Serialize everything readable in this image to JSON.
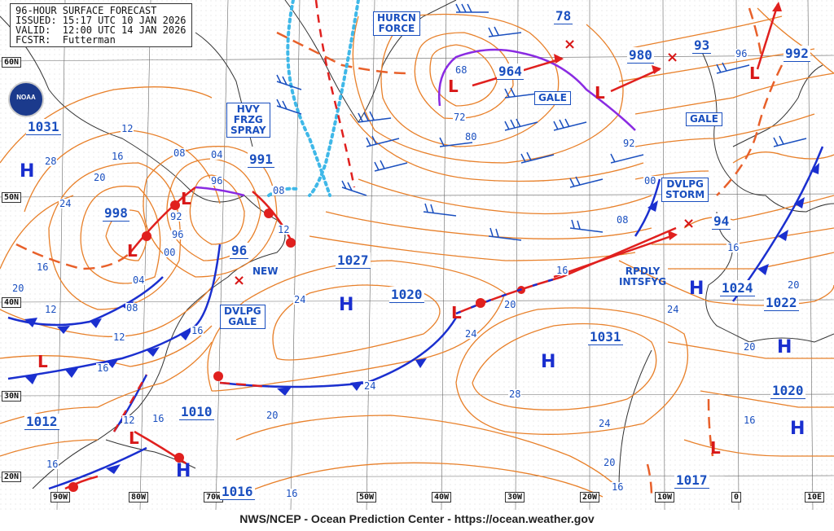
{
  "header": {
    "line1": "96-HOUR SURFACE FORECAST",
    "line2": "ISSUED: 15:17 UTC 10 JAN 2026",
    "line3": "VALID:  12:00 UTC 14 JAN 2026",
    "line4": "FCSTR:  Futterman"
  },
  "footer": "NWS/NCEP - Ocean Prediction Center - https://ocean.weather.gov",
  "logo": "NOAA",
  "lat_labels": [
    "60N",
    "50N",
    "40N",
    "30N",
    "20N"
  ],
  "lon_labels": [
    "90W",
    "80W",
    "70W",
    "50W",
    "40W",
    "30W",
    "20W",
    "10W",
    "0",
    "10E"
  ],
  "warnings": {
    "hurcn_force": "HURCN\nFORCE",
    "hvy_frzg_spray": "HVY\nFRZG\nSPRAY",
    "gale_1": "GALE",
    "gale_2": "GALE",
    "dvlpg_storm": "DVLPG\nSTORM",
    "dvlpg_gale": "DVLPG\nGALE",
    "rpdly_intsfyg": "RPDLY\nINTSFYG",
    "new": "NEW"
  },
  "pressures": {
    "p964": "964",
    "p980": "980",
    "p78": "78",
    "p93": "93",
    "p992": "992",
    "p1031w": "1031",
    "p991": "991",
    "p998": "998",
    "p96": "96",
    "p1027": "1027",
    "p1020": "1020",
    "p94": "94",
    "p1024": "1024",
    "p1022": "1022",
    "p1031": "1031",
    "p1012": "1012",
    "p1010": "1010",
    "p1020e": "1020",
    "p1016": "1016",
    "p1017": "1017"
  },
  "isobar_labels": {
    "i68": "68",
    "i72": "72",
    "i80": "80",
    "i92": "92",
    "i00a": "00",
    "i08a": "08",
    "i12a": "12",
    "i16a": "16",
    "i20a": "20",
    "i28a": "28",
    "i24a": "24",
    "i08b": "08",
    "i04a": "04",
    "i96a": "96",
    "i08c": "08",
    "i12b": "12",
    "i92b": "92",
    "i96b": "96",
    "i00b": "00",
    "i04b": "04",
    "i08d": "08",
    "i16b": "16",
    "i20b": "20",
    "i12c": "12",
    "i16c": "16",
    "i12d": "12",
    "i16d": "16",
    "i24b": "24",
    "i16e": "16",
    "i20c": "20",
    "i24c": "24",
    "i24d": "24",
    "i28b": "28",
    "i20d": "20",
    "i24e": "24",
    "i20e": "20",
    "i16f": "16",
    "i20f": "20",
    "i16g": "16",
    "i20g": "20",
    "i96c": "96",
    "i16h": "16",
    "i16i": "16",
    "i20h": "20",
    "i12e": "12",
    "i16j": "16"
  },
  "symbols": {
    "high": "H",
    "low": "L",
    "new_cyclone": "×"
  },
  "colors": {
    "isobar": "#e8802a",
    "warm_front": "#e0201e",
    "cold_front": "#1a2fcf",
    "occluded": "#8a2be2",
    "ice_edge": "#3fb8e8",
    "coast": "#333333",
    "grid": "#555555",
    "wind_barb": "#1a4fbf"
  }
}
